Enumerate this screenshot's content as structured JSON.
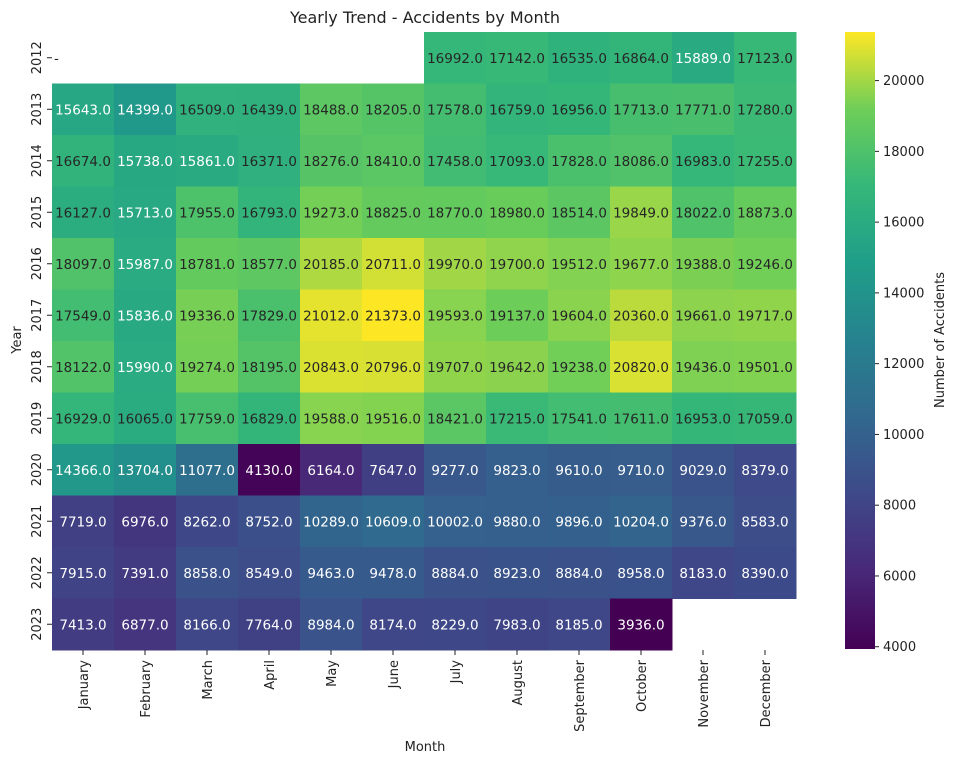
{
  "chart_data": {
    "type": "heatmap",
    "title": "Yearly Trend - Accidents by Month",
    "xlabel": "Month",
    "ylabel": "Year",
    "colorbar_label": "Number of Accidents",
    "colormap": "viridis",
    "vmin": 3936,
    "vmax": 21373,
    "colorbar_ticks": [
      "4000",
      "6000",
      "8000",
      "10000",
      "12000",
      "14000",
      "16000",
      "18000",
      "20000"
    ],
    "x_categories": [
      "January",
      "February",
      "March",
      "April",
      "May",
      "June",
      "July",
      "August",
      "September",
      "October",
      "November",
      "December"
    ],
    "y_categories": [
      "2012",
      "2013",
      "2014",
      "2015",
      "2016",
      "2017",
      "2018",
      "2019",
      "2020",
      "2021",
      "2022",
      "2023"
    ],
    "values": [
      [
        null,
        null,
        null,
        null,
        null,
        null,
        16992.0,
        17142.0,
        16535.0,
        16864.0,
        15889.0,
        17123.0
      ],
      [
        15643.0,
        14399.0,
        16509.0,
        16439.0,
        18488.0,
        18205.0,
        17578.0,
        16759.0,
        16956.0,
        17713.0,
        17771.0,
        17280.0
      ],
      [
        16674.0,
        15738.0,
        15861.0,
        16371.0,
        18276.0,
        18410.0,
        17458.0,
        17093.0,
        17828.0,
        18086.0,
        16983.0,
        17255.0
      ],
      [
        16127.0,
        15713.0,
        17955.0,
        16793.0,
        19273.0,
        18825.0,
        18770.0,
        18980.0,
        18514.0,
        19849.0,
        18022.0,
        18873.0
      ],
      [
        18097.0,
        15987.0,
        18781.0,
        18577.0,
        20185.0,
        20711.0,
        19970.0,
        19700.0,
        19512.0,
        19677.0,
        19388.0,
        19246.0
      ],
      [
        17549.0,
        15836.0,
        19336.0,
        17829.0,
        21012.0,
        21373.0,
        19593.0,
        19137.0,
        19604.0,
        20360.0,
        19661.0,
        19717.0
      ],
      [
        18122.0,
        15990.0,
        19274.0,
        18195.0,
        20843.0,
        20796.0,
        19707.0,
        19642.0,
        19238.0,
        20820.0,
        19436.0,
        19501.0
      ],
      [
        16929.0,
        16065.0,
        17759.0,
        16829.0,
        19588.0,
        19516.0,
        18421.0,
        17215.0,
        17541.0,
        17611.0,
        16953.0,
        17059.0
      ],
      [
        14366.0,
        13704.0,
        11077.0,
        4130.0,
        6164.0,
        7647.0,
        9277.0,
        9823.0,
        9610.0,
        9710.0,
        9029.0,
        8379.0
      ],
      [
        7719.0,
        6976.0,
        8262.0,
        8752.0,
        10289.0,
        10609.0,
        10002.0,
        9880.0,
        9896.0,
        10204.0,
        9376.0,
        8583.0
      ],
      [
        7915.0,
        7391.0,
        8858.0,
        8549.0,
        9463.0,
        9478.0,
        8884.0,
        8923.0,
        8884.0,
        8958.0,
        8183.0,
        8390.0
      ],
      [
        7413.0,
        6877.0,
        8166.0,
        7764.0,
        8984.0,
        8174.0,
        8229.0,
        7983.0,
        8185.0,
        3936.0,
        null,
        null
      ]
    ],
    "missing_label": "-",
    "grid": false,
    "legend": "colorbar-right"
  }
}
